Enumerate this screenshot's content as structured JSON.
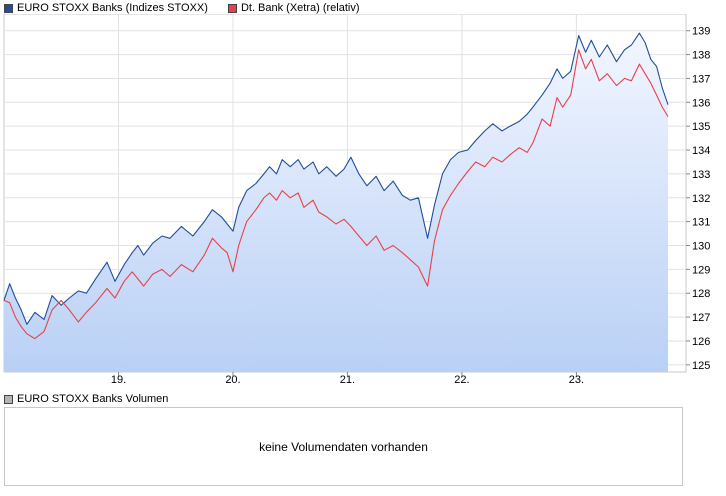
{
  "legend": {
    "series1_label": "EURO STOXX Banks (Indizes STOXX)",
    "series2_label": "Dt. Bank (Xetra) (relativ)",
    "series1_color": "#1f4e9b",
    "series2_color": "#e8404a"
  },
  "volume": {
    "legend_label": "EURO STOXX Banks Volumen",
    "legend_color": "#b4b4b4",
    "message": "keine Volumendaten vorhanden"
  },
  "chart_data": {
    "type": "line",
    "title": "",
    "xlabel": "",
    "ylabel": "",
    "x_ticks": [
      "19.",
      "20.",
      "21.",
      "22.",
      "23."
    ],
    "y_ticks": [
      125,
      126,
      127,
      128,
      129,
      130,
      131,
      132,
      133,
      134,
      135,
      136,
      137,
      138,
      139
    ],
    "ylim": [
      124.7,
      139.7
    ],
    "xlim": [
      18.0,
      23.8
    ],
    "y_axis_position": "right",
    "grid": true,
    "legend_position": "top-left",
    "series": [
      {
        "name": "EURO STOXX Banks (Indizes STOXX)",
        "color": "#1f4e9b",
        "fill": true,
        "points": [
          [
            18.0,
            127.7
          ],
          [
            18.05,
            128.4
          ],
          [
            18.1,
            127.8
          ],
          [
            18.15,
            127.3
          ],
          [
            18.2,
            126.7
          ],
          [
            18.27,
            127.2
          ],
          [
            18.35,
            126.9
          ],
          [
            18.42,
            127.9
          ],
          [
            18.5,
            127.5
          ],
          [
            18.57,
            127.8
          ],
          [
            18.65,
            128.1
          ],
          [
            18.72,
            128.0
          ],
          [
            18.8,
            128.6
          ],
          [
            18.9,
            129.3
          ],
          [
            18.97,
            128.5
          ],
          [
            19.05,
            129.2
          ],
          [
            19.12,
            129.7
          ],
          [
            19.17,
            130.0
          ],
          [
            19.22,
            129.6
          ],
          [
            19.3,
            130.1
          ],
          [
            19.38,
            130.4
          ],
          [
            19.45,
            130.3
          ],
          [
            19.55,
            130.8
          ],
          [
            19.65,
            130.4
          ],
          [
            19.75,
            131.0
          ],
          [
            19.82,
            131.5
          ],
          [
            19.9,
            131.2
          ],
          [
            19.95,
            130.9
          ],
          [
            20.0,
            130.6
          ],
          [
            20.05,
            131.6
          ],
          [
            20.12,
            132.3
          ],
          [
            20.2,
            132.6
          ],
          [
            20.27,
            133.0
          ],
          [
            20.32,
            133.3
          ],
          [
            20.38,
            133.0
          ],
          [
            20.43,
            133.6
          ],
          [
            20.5,
            133.3
          ],
          [
            20.57,
            133.6
          ],
          [
            20.62,
            133.2
          ],
          [
            20.7,
            133.5
          ],
          [
            20.75,
            133.0
          ],
          [
            20.82,
            133.3
          ],
          [
            20.9,
            132.9
          ],
          [
            20.97,
            133.2
          ],
          [
            21.03,
            133.7
          ],
          [
            21.1,
            133.0
          ],
          [
            21.17,
            132.5
          ],
          [
            21.25,
            132.9
          ],
          [
            21.32,
            132.3
          ],
          [
            21.4,
            132.7
          ],
          [
            21.48,
            132.1
          ],
          [
            21.55,
            131.9
          ],
          [
            21.62,
            132.0
          ],
          [
            21.7,
            130.3
          ],
          [
            21.76,
            131.7
          ],
          [
            21.83,
            133.0
          ],
          [
            21.9,
            133.6
          ],
          [
            21.97,
            133.9
          ],
          [
            22.05,
            134.0
          ],
          [
            22.12,
            134.4
          ],
          [
            22.2,
            134.8
          ],
          [
            22.27,
            135.1
          ],
          [
            22.35,
            134.8
          ],
          [
            22.42,
            135.0
          ],
          [
            22.5,
            135.2
          ],
          [
            22.57,
            135.5
          ],
          [
            22.62,
            135.8
          ],
          [
            22.7,
            136.3
          ],
          [
            22.77,
            136.8
          ],
          [
            22.83,
            137.4
          ],
          [
            22.88,
            137.0
          ],
          [
            22.95,
            137.3
          ],
          [
            23.02,
            138.8
          ],
          [
            23.08,
            138.1
          ],
          [
            23.13,
            138.6
          ],
          [
            23.2,
            137.9
          ],
          [
            23.27,
            138.4
          ],
          [
            23.35,
            137.7
          ],
          [
            23.42,
            138.2
          ],
          [
            23.48,
            138.4
          ],
          [
            23.55,
            138.9
          ],
          [
            23.6,
            138.5
          ],
          [
            23.65,
            137.8
          ],
          [
            23.7,
            137.5
          ],
          [
            23.75,
            136.6
          ],
          [
            23.8,
            135.9
          ]
        ]
      },
      {
        "name": "Dt. Bank (Xetra) (relativ)",
        "color": "#e8404a",
        "fill": false,
        "points": [
          [
            18.0,
            127.7
          ],
          [
            18.05,
            127.6
          ],
          [
            18.1,
            127.0
          ],
          [
            18.15,
            126.6
          ],
          [
            18.2,
            126.3
          ],
          [
            18.27,
            126.1
          ],
          [
            18.35,
            126.4
          ],
          [
            18.42,
            127.3
          ],
          [
            18.5,
            127.7
          ],
          [
            18.57,
            127.3
          ],
          [
            18.65,
            126.8
          ],
          [
            18.72,
            127.2
          ],
          [
            18.8,
            127.6
          ],
          [
            18.9,
            128.2
          ],
          [
            18.97,
            127.8
          ],
          [
            19.05,
            128.5
          ],
          [
            19.12,
            128.9
          ],
          [
            19.17,
            128.6
          ],
          [
            19.22,
            128.3
          ],
          [
            19.3,
            128.8
          ],
          [
            19.38,
            129.0
          ],
          [
            19.45,
            128.7
          ],
          [
            19.55,
            129.2
          ],
          [
            19.65,
            128.9
          ],
          [
            19.75,
            129.6
          ],
          [
            19.82,
            130.3
          ],
          [
            19.9,
            129.9
          ],
          [
            19.95,
            129.7
          ],
          [
            20.0,
            128.9
          ],
          [
            20.05,
            130.0
          ],
          [
            20.12,
            131.0
          ],
          [
            20.2,
            131.5
          ],
          [
            20.27,
            132.0
          ],
          [
            20.32,
            132.2
          ],
          [
            20.38,
            131.9
          ],
          [
            20.43,
            132.3
          ],
          [
            20.5,
            132.0
          ],
          [
            20.57,
            132.2
          ],
          [
            20.62,
            131.6
          ],
          [
            20.7,
            131.9
          ],
          [
            20.75,
            131.4
          ],
          [
            20.82,
            131.2
          ],
          [
            20.9,
            130.9
          ],
          [
            20.97,
            131.1
          ],
          [
            21.03,
            130.8
          ],
          [
            21.1,
            130.4
          ],
          [
            21.17,
            130.0
          ],
          [
            21.25,
            130.4
          ],
          [
            21.32,
            129.8
          ],
          [
            21.4,
            130.0
          ],
          [
            21.48,
            129.7
          ],
          [
            21.55,
            129.4
          ],
          [
            21.62,
            129.1
          ],
          [
            21.7,
            128.3
          ],
          [
            21.76,
            130.2
          ],
          [
            21.83,
            131.5
          ],
          [
            21.9,
            132.1
          ],
          [
            21.97,
            132.6
          ],
          [
            22.05,
            133.1
          ],
          [
            22.12,
            133.5
          ],
          [
            22.2,
            133.3
          ],
          [
            22.27,
            133.7
          ],
          [
            22.35,
            133.5
          ],
          [
            22.42,
            133.8
          ],
          [
            22.5,
            134.1
          ],
          [
            22.57,
            133.9
          ],
          [
            22.62,
            134.3
          ],
          [
            22.7,
            135.3
          ],
          [
            22.77,
            135.0
          ],
          [
            22.83,
            136.2
          ],
          [
            22.88,
            135.8
          ],
          [
            22.95,
            136.3
          ],
          [
            23.02,
            138.2
          ],
          [
            23.08,
            137.4
          ],
          [
            23.13,
            137.8
          ],
          [
            23.2,
            136.9
          ],
          [
            23.27,
            137.2
          ],
          [
            23.35,
            136.7
          ],
          [
            23.42,
            137.0
          ],
          [
            23.48,
            136.9
          ],
          [
            23.55,
            137.6
          ],
          [
            23.6,
            137.2
          ],
          [
            23.65,
            136.8
          ],
          [
            23.7,
            136.3
          ],
          [
            23.75,
            135.8
          ],
          [
            23.8,
            135.4
          ]
        ]
      }
    ]
  }
}
